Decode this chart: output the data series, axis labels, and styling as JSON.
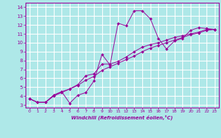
{
  "xlabel": "Windchill (Refroidissement éolien,°C)",
  "x_ticks": [
    0,
    1,
    2,
    3,
    4,
    5,
    6,
    7,
    8,
    9,
    10,
    11,
    12,
    13,
    14,
    15,
    16,
    17,
    18,
    19,
    20,
    21,
    22,
    23
  ],
  "y_ticks": [
    3,
    4,
    5,
    6,
    7,
    8,
    9,
    10,
    11,
    12,
    13,
    14
  ],
  "xlim": [
    -0.5,
    23.5
  ],
  "ylim": [
    2.7,
    14.5
  ],
  "line_color": "#990099",
  "bg_color": "#aee8e8",
  "grid_color": "#ffffff",
  "line1_x": [
    0,
    1,
    2,
    3,
    4,
    5,
    6,
    7,
    8,
    9,
    10,
    11,
    12,
    13,
    14,
    15,
    16,
    17,
    18,
    19,
    20,
    21,
    22,
    23
  ],
  "line1_y": [
    3.7,
    3.3,
    3.3,
    4.1,
    4.5,
    3.2,
    4.1,
    4.4,
    5.7,
    8.7,
    7.5,
    12.2,
    11.9,
    13.6,
    13.6,
    12.7,
    10.5,
    9.3,
    10.2,
    10.5,
    11.4,
    11.7,
    11.6,
    11.5
  ],
  "line2_x": [
    0,
    1,
    2,
    3,
    4,
    5,
    6,
    7,
    8,
    9,
    10,
    11,
    12,
    13,
    14,
    15,
    16,
    17,
    18,
    19,
    20,
    21,
    22,
    23
  ],
  "line2_y": [
    3.7,
    3.3,
    3.3,
    4.1,
    4.5,
    4.8,
    5.3,
    6.3,
    6.5,
    7.6,
    7.6,
    7.9,
    8.4,
    9.0,
    9.5,
    9.8,
    10.0,
    10.3,
    10.6,
    10.8,
    11.0,
    11.2,
    11.5,
    11.5
  ],
  "line3_x": [
    0,
    1,
    2,
    3,
    4,
    5,
    6,
    7,
    8,
    9,
    10,
    11,
    12,
    13,
    14,
    15,
    16,
    17,
    18,
    19,
    20,
    21,
    22,
    23
  ],
  "line3_y": [
    3.7,
    3.3,
    3.3,
    4.0,
    4.4,
    4.8,
    5.2,
    5.8,
    6.2,
    6.9,
    7.3,
    7.7,
    8.1,
    8.5,
    9.0,
    9.4,
    9.7,
    10.0,
    10.3,
    10.6,
    10.9,
    11.1,
    11.4,
    11.5
  ]
}
